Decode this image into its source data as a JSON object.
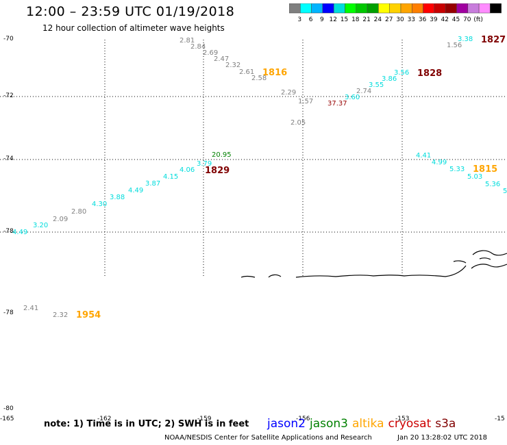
{
  "title": "12:00 – 23:59 UTC 01/19/2018",
  "subtitle": "12 hour collection of altimeter wave heights",
  "colorbar": {
    "colors": [
      "#7f7f7f",
      "#00ffff",
      "#00b4ff",
      "#0000ff",
      "#00dcdc",
      "#00ff00",
      "#00c800",
      "#00a000",
      "#ffff00",
      "#ffd200",
      "#ffa500",
      "#ff7f00",
      "#ff0000",
      "#c80000",
      "#960000",
      "#a000a0",
      "#c87ddc",
      "#ff8cff",
      "#000000"
    ],
    "labels": [
      "3",
      "6",
      "9",
      "12",
      "15",
      "18",
      "21",
      "24",
      "27",
      "30",
      "33",
      "36",
      "39",
      "42",
      "45",
      "70",
      "(ft)"
    ]
  },
  "note": "note: 1) Time is in UTC; 2) SWH is in feet",
  "legend": [
    {
      "name": "jason2",
      "color": "#0000ff"
    },
    {
      "name": "jason3",
      "color": "#008000"
    },
    {
      "name": "altika",
      "color": "#ffa500"
    },
    {
      "name": "cryosat",
      "color": "#cc0000"
    },
    {
      "name": "s3a",
      "color": "#800000"
    }
  ],
  "credit": "NOAA/NESDIS Center for Satellite Applications and Research",
  "timestamp": "Jan 20 13:28:02 UTC 2018",
  "lat_labels_top": [
    "-70",
    "-72",
    "-74",
    "-78"
  ],
  "lat_labels_bottom": [
    "-78",
    "-80"
  ],
  "lon_labels": [
    "-165",
    "-162",
    "-159",
    "-156",
    "-153",
    "-15"
  ],
  "observations": [
    {
      "text": "2.81",
      "color": "#7f7f7f"
    },
    {
      "text": "2.84",
      "color": "#7f7f7f"
    },
    {
      "text": "2.69",
      "color": "#7f7f7f"
    },
    {
      "text": "2.47",
      "color": "#7f7f7f"
    },
    {
      "text": "2.32",
      "color": "#7f7f7f"
    },
    {
      "text": "2.61",
      "color": "#7f7f7f"
    },
    {
      "text": "2.58",
      "color": "#7f7f7f"
    },
    {
      "text": "1816",
      "color": "#ffa500"
    },
    {
      "text": "2.29",
      "color": "#7f7f7f"
    },
    {
      "text": "1.57",
      "color": "#7f7f7f"
    },
    {
      "text": "2.05",
      "color": "#7f7f7f"
    },
    {
      "text": "37.37",
      "color": "#960000"
    },
    {
      "text": "3.60",
      "color": "#00dcdc"
    },
    {
      "text": "2.74",
      "color": "#7f7f7f"
    },
    {
      "text": "3.55",
      "color": "#00dcdc"
    },
    {
      "text": "3.86",
      "color": "#00dcdc"
    },
    {
      "text": "3.56",
      "color": "#00dcdc"
    },
    {
      "text": "1828",
      "color": "#800000"
    },
    {
      "text": "1.56",
      "color": "#7f7f7f"
    },
    {
      "text": "3.38",
      "color": "#00dcdc"
    },
    {
      "text": "1827",
      "color": "#800000"
    },
    {
      "text": "20.95",
      "color": "#008000"
    },
    {
      "text": "3.79",
      "color": "#00dcdc"
    },
    {
      "text": "1829",
      "color": "#800000"
    },
    {
      "text": "4.06",
      "color": "#00dcdc"
    },
    {
      "text": "4.15",
      "color": "#00dcdc"
    },
    {
      "text": "3.87",
      "color": "#00dcdc"
    },
    {
      "text": "4.49",
      "color": "#00dcdc"
    },
    {
      "text": "3.88",
      "color": "#00dcdc"
    },
    {
      "text": "4.30",
      "color": "#00dcdc"
    },
    {
      "text": "2.80",
      "color": "#7f7f7f"
    },
    {
      "text": "2.09",
      "color": "#7f7f7f"
    },
    {
      "text": "3.20",
      "color": "#00dcdc"
    },
    {
      "text": "4.49",
      "color": "#00dcdc"
    },
    {
      "text": "4.41",
      "color": "#00dcdc"
    },
    {
      "text": "4.99",
      "color": "#00dcdc"
    },
    {
      "text": "5.33",
      "color": "#00dcdc"
    },
    {
      "text": "1815",
      "color": "#ffa500"
    },
    {
      "text": "5.03",
      "color": "#00dcdc"
    },
    {
      "text": "5.36",
      "color": "#00dcdc"
    },
    {
      "text": "5",
      "color": "#00dcdc"
    },
    {
      "text": "2.41",
      "color": "#7f7f7f"
    },
    {
      "text": "2.32",
      "color": "#7f7f7f"
    },
    {
      "text": "1954",
      "color": "#ffa500"
    }
  ]
}
